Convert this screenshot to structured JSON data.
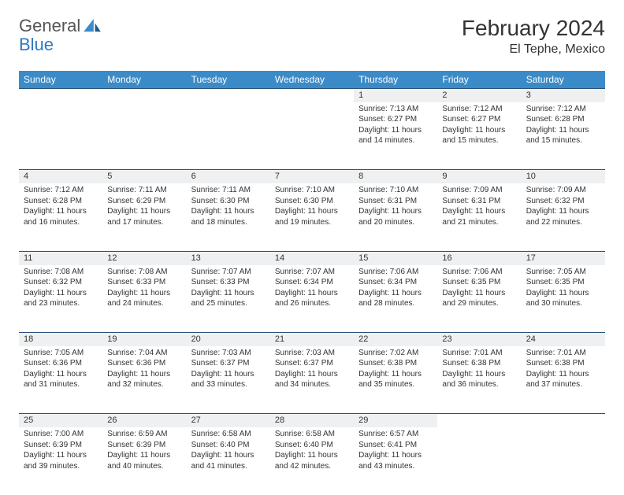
{
  "brand": {
    "part1": "General",
    "part2": "Blue"
  },
  "title": "February 2024",
  "location": "El Tephe, Mexico",
  "colors": {
    "header_bg": "#3b8bc9",
    "daynum_bg": "#eef0f1",
    "border": "#2a5278",
    "text": "#333333",
    "brand_blue": "#2f7ac0"
  },
  "dayNames": [
    "Sunday",
    "Monday",
    "Tuesday",
    "Wednesday",
    "Thursday",
    "Friday",
    "Saturday"
  ],
  "weeks": [
    [
      null,
      null,
      null,
      null,
      {
        "n": "1",
        "sr": "7:13 AM",
        "ss": "6:27 PM",
        "dl": "11 hours and 14 minutes."
      },
      {
        "n": "2",
        "sr": "7:12 AM",
        "ss": "6:27 PM",
        "dl": "11 hours and 15 minutes."
      },
      {
        "n": "3",
        "sr": "7:12 AM",
        "ss": "6:28 PM",
        "dl": "11 hours and 15 minutes."
      }
    ],
    [
      {
        "n": "4",
        "sr": "7:12 AM",
        "ss": "6:28 PM",
        "dl": "11 hours and 16 minutes."
      },
      {
        "n": "5",
        "sr": "7:11 AM",
        "ss": "6:29 PM",
        "dl": "11 hours and 17 minutes."
      },
      {
        "n": "6",
        "sr": "7:11 AM",
        "ss": "6:30 PM",
        "dl": "11 hours and 18 minutes."
      },
      {
        "n": "7",
        "sr": "7:10 AM",
        "ss": "6:30 PM",
        "dl": "11 hours and 19 minutes."
      },
      {
        "n": "8",
        "sr": "7:10 AM",
        "ss": "6:31 PM",
        "dl": "11 hours and 20 minutes."
      },
      {
        "n": "9",
        "sr": "7:09 AM",
        "ss": "6:31 PM",
        "dl": "11 hours and 21 minutes."
      },
      {
        "n": "10",
        "sr": "7:09 AM",
        "ss": "6:32 PM",
        "dl": "11 hours and 22 minutes."
      }
    ],
    [
      {
        "n": "11",
        "sr": "7:08 AM",
        "ss": "6:32 PM",
        "dl": "11 hours and 23 minutes."
      },
      {
        "n": "12",
        "sr": "7:08 AM",
        "ss": "6:33 PM",
        "dl": "11 hours and 24 minutes."
      },
      {
        "n": "13",
        "sr": "7:07 AM",
        "ss": "6:33 PM",
        "dl": "11 hours and 25 minutes."
      },
      {
        "n": "14",
        "sr": "7:07 AM",
        "ss": "6:34 PM",
        "dl": "11 hours and 26 minutes."
      },
      {
        "n": "15",
        "sr": "7:06 AM",
        "ss": "6:34 PM",
        "dl": "11 hours and 28 minutes."
      },
      {
        "n": "16",
        "sr": "7:06 AM",
        "ss": "6:35 PM",
        "dl": "11 hours and 29 minutes."
      },
      {
        "n": "17",
        "sr": "7:05 AM",
        "ss": "6:35 PM",
        "dl": "11 hours and 30 minutes."
      }
    ],
    [
      {
        "n": "18",
        "sr": "7:05 AM",
        "ss": "6:36 PM",
        "dl": "11 hours and 31 minutes."
      },
      {
        "n": "19",
        "sr": "7:04 AM",
        "ss": "6:36 PM",
        "dl": "11 hours and 32 minutes."
      },
      {
        "n": "20",
        "sr": "7:03 AM",
        "ss": "6:37 PM",
        "dl": "11 hours and 33 minutes."
      },
      {
        "n": "21",
        "sr": "7:03 AM",
        "ss": "6:37 PM",
        "dl": "11 hours and 34 minutes."
      },
      {
        "n": "22",
        "sr": "7:02 AM",
        "ss": "6:38 PM",
        "dl": "11 hours and 35 minutes."
      },
      {
        "n": "23",
        "sr": "7:01 AM",
        "ss": "6:38 PM",
        "dl": "11 hours and 36 minutes."
      },
      {
        "n": "24",
        "sr": "7:01 AM",
        "ss": "6:38 PM",
        "dl": "11 hours and 37 minutes."
      }
    ],
    [
      {
        "n": "25",
        "sr": "7:00 AM",
        "ss": "6:39 PM",
        "dl": "11 hours and 39 minutes."
      },
      {
        "n": "26",
        "sr": "6:59 AM",
        "ss": "6:39 PM",
        "dl": "11 hours and 40 minutes."
      },
      {
        "n": "27",
        "sr": "6:58 AM",
        "ss": "6:40 PM",
        "dl": "11 hours and 41 minutes."
      },
      {
        "n": "28",
        "sr": "6:58 AM",
        "ss": "6:40 PM",
        "dl": "11 hours and 42 minutes."
      },
      {
        "n": "29",
        "sr": "6:57 AM",
        "ss": "6:41 PM",
        "dl": "11 hours and 43 minutes."
      },
      null,
      null
    ]
  ],
  "labels": {
    "sunrise": "Sunrise: ",
    "sunset": "Sunset: ",
    "daylight": "Daylight: "
  }
}
